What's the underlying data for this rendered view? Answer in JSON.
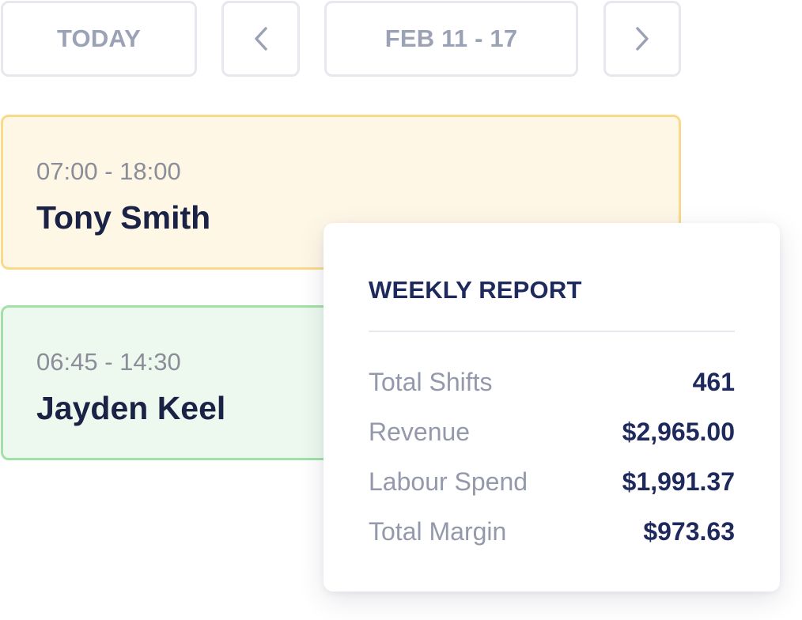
{
  "toolbar": {
    "today_label": "TODAY",
    "prev_icon": "chevron-left-icon",
    "date_range": "FEB 11 - 17",
    "next_icon": "chevron-right-icon"
  },
  "shifts": [
    {
      "time": "07:00 - 18:00",
      "name": "Tony Smith",
      "color": "#fbd98a"
    },
    {
      "time": "06:45 - 14:30",
      "name": "Jayden Keel",
      "color": "#a2e0a7"
    }
  ],
  "report": {
    "title": "WEEKLY REPORT",
    "rows": [
      {
        "label": "Total Shifts",
        "value": "461"
      },
      {
        "label": "Revenue",
        "value": "$2,965.00"
      },
      {
        "label": "Labour Spend",
        "value": "$1,991.37"
      },
      {
        "label": "Total Margin",
        "value": "$973.63"
      }
    ]
  }
}
